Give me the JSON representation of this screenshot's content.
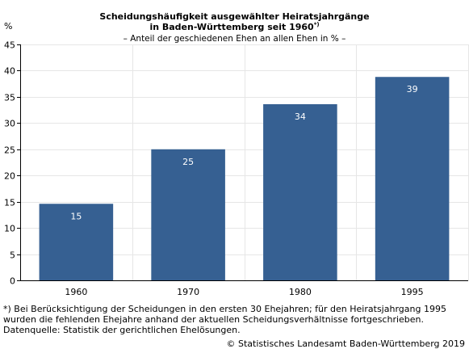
{
  "chart_data": {
    "type": "bar",
    "title_line1": "Scheidungshäufigkeit ausgewählter Heiratsjahrgänge",
    "title_line2": "in Baden-Württemberg seit 1960",
    "title_marker": "*)",
    "subtitle": "– Anteil der geschiedenen Ehen an allen Ehen in % –",
    "ylabel": "%",
    "xlabel": "",
    "categories": [
      "1960",
      "1970",
      "1980",
      "1995"
    ],
    "values": [
      14.6,
      25,
      33.6,
      38.8
    ],
    "value_labels": [
      "15",
      "25",
      "34",
      "39"
    ],
    "ylim": [
      0,
      45
    ],
    "yticks": [
      0,
      5,
      10,
      15,
      20,
      25,
      30,
      35,
      40,
      45
    ],
    "grid": true,
    "legend": "none",
    "bar_color": "#366092",
    "label_color": "#ffffff",
    "grid_color": "#e6e6e6"
  },
  "footnotes": {
    "line1": "*) Bei Berücksichtigung der Scheidungen in den ersten 30 Ehejahren; für den Heiratsjahrgang 1995",
    "line2": "wurden die fehlenden Ehejahre anhand der aktuellen Scheidungsverhältnisse fortgeschrieben.",
    "line3": "Datenquelle: Statistik der gerichtlichen Ehelösungen."
  },
  "credit": "© Statistisches Landesamt Baden-Württemberg 2019"
}
